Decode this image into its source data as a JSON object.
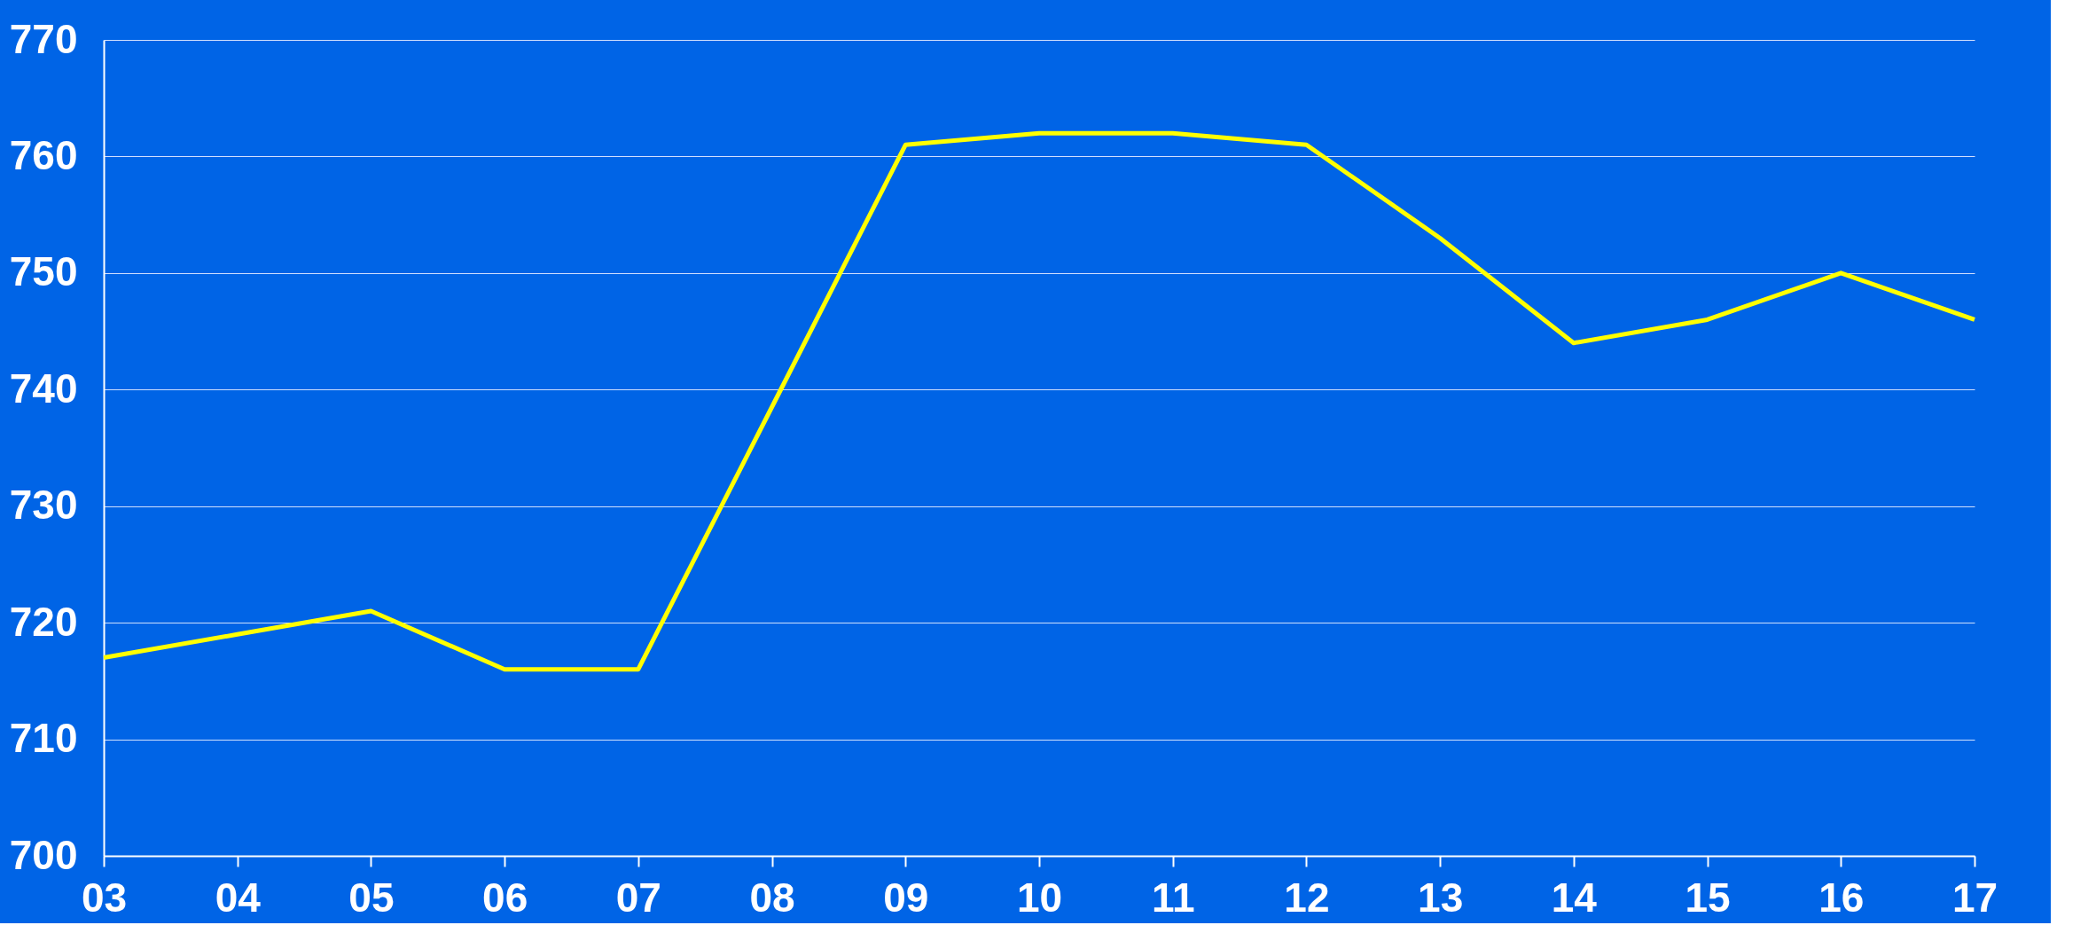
{
  "chart_data": {
    "type": "line",
    "categories": [
      "03",
      "04",
      "05",
      "06",
      "07",
      "08",
      "09",
      "10",
      "11",
      "12",
      "13",
      "14",
      "15",
      "16",
      "17"
    ],
    "series": [
      {
        "color": "#ffff00",
        "values": [
          717,
          719,
          721,
          716,
          716,
          738.5,
          761,
          762,
          762,
          761,
          753,
          744,
          746,
          750,
          746
        ]
      }
    ],
    "ylim": [
      700,
      770
    ],
    "yticks": [
      700,
      710,
      720,
      730,
      740,
      750,
      760,
      770
    ],
    "grid": "y",
    "legend": false,
    "marker": "none",
    "line_style": "solid"
  }
}
